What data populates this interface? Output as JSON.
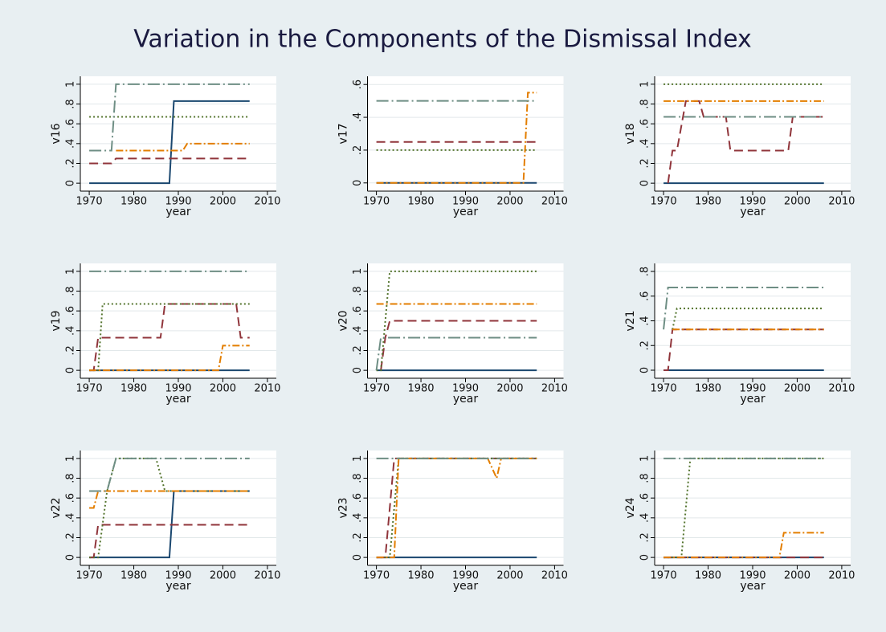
{
  "title": "Variation in the Components of the Dismissal Index",
  "chart_data": [
    {
      "type": "line",
      "ylabel": "v16",
      "xlabel": "year",
      "xlim": [
        1968,
        2012
      ],
      "ylim": [
        -0.08,
        1.08
      ],
      "xticks": [
        1970,
        1980,
        1990,
        2000,
        2010
      ],
      "yticks": [
        0,
        {
          "value": 0.2,
          "label": ".2"
        },
        {
          "value": 0.4,
          "label": ".4"
        },
        {
          "value": 0.6,
          "label": ".6"
        },
        {
          "value": 0.8,
          "label": ".8"
        },
        1
      ],
      "series": [
        {
          "color": "#1a476f",
          "style": "solid",
          "x": [
            1970,
            1988,
            1989,
            2006
          ],
          "values": [
            0,
            0,
            0.83,
            0.83
          ]
        },
        {
          "color": "#90353b",
          "style": "dash",
          "x": [
            1970,
            1975,
            1976,
            2006
          ],
          "values": [
            0.2,
            0.2,
            0.25,
            0.25
          ]
        },
        {
          "color": "#55752f",
          "style": "dot",
          "x": [
            1970,
            2006
          ],
          "values": [
            0.67,
            0.67
          ]
        },
        {
          "color": "#e37e00",
          "style": "dashdot",
          "x": [
            1976,
            1991,
            1992,
            2006
          ],
          "values": [
            0.33,
            0.33,
            0.4,
            0.4
          ]
        },
        {
          "color": "#6e8e84",
          "style": "longdashdot",
          "x": [
            1970,
            1975,
            1976,
            2006
          ],
          "values": [
            0.33,
            0.33,
            1,
            1
          ]
        }
      ]
    },
    {
      "type": "line",
      "ylabel": "v17",
      "xlabel": "year",
      "xlim": [
        1968,
        2012
      ],
      "ylim": [
        -0.05,
        0.65
      ],
      "xticks": [
        1970,
        1980,
        1990,
        2000,
        2010
      ],
      "yticks": [
        0,
        {
          "value": 0.2,
          "label": ".2"
        },
        {
          "value": 0.4,
          "label": ".4"
        },
        {
          "value": 0.6,
          "label": ".6"
        }
      ],
      "series": [
        {
          "color": "#1a476f",
          "style": "solid",
          "x": [
            1970,
            2006
          ],
          "values": [
            0,
            0
          ]
        },
        {
          "color": "#90353b",
          "style": "dash",
          "x": [
            1970,
            2006
          ],
          "values": [
            0.25,
            0.25
          ]
        },
        {
          "color": "#55752f",
          "style": "dot",
          "x": [
            1970,
            2006
          ],
          "values": [
            0.2,
            0.2
          ]
        },
        {
          "color": "#e37e00",
          "style": "dashdot",
          "x": [
            1970,
            2003,
            2004,
            2006
          ],
          "values": [
            0,
            0,
            0.55,
            0.55
          ]
        },
        {
          "color": "#6e8e84",
          "style": "longdashdot",
          "x": [
            1970,
            2006
          ],
          "values": [
            0.5,
            0.5
          ]
        }
      ]
    },
    {
      "type": "line",
      "ylabel": "v18",
      "xlabel": "year",
      "xlim": [
        1968,
        2012
      ],
      "ylim": [
        -0.08,
        1.08
      ],
      "xticks": [
        1970,
        1980,
        1990,
        2000,
        2010
      ],
      "yticks": [
        0,
        {
          "value": 0.2,
          "label": ".2"
        },
        {
          "value": 0.4,
          "label": ".4"
        },
        {
          "value": 0.6,
          "label": ".6"
        },
        {
          "value": 0.8,
          "label": ".8"
        },
        1
      ],
      "series": [
        {
          "color": "#1a476f",
          "style": "solid",
          "x": [
            1970,
            2006
          ],
          "values": [
            0,
            0
          ]
        },
        {
          "color": "#90353b",
          "style": "dash",
          "x": [
            1971,
            1972,
            1973,
            1975,
            1978,
            1979,
            1984,
            1985,
            1998,
            1999,
            2006
          ],
          "values": [
            0,
            0.33,
            0.33,
            0.83,
            0.83,
            0.67,
            0.67,
            0.33,
            0.33,
            0.67,
            0.67
          ]
        },
        {
          "color": "#55752f",
          "style": "dot",
          "x": [
            1970,
            2006
          ],
          "values": [
            1,
            1
          ]
        },
        {
          "color": "#e37e00",
          "style": "dashdot",
          "x": [
            1970,
            2006
          ],
          "values": [
            0.83,
            0.83
          ]
        },
        {
          "color": "#6e8e84",
          "style": "longdashdot",
          "x": [
            1970,
            2006
          ],
          "values": [
            0.67,
            0.67
          ]
        }
      ]
    },
    {
      "type": "line",
      "ylabel": "v19",
      "xlabel": "year",
      "xlim": [
        1968,
        2012
      ],
      "ylim": [
        -0.08,
        1.08
      ],
      "xticks": [
        1970,
        1980,
        1990,
        2000,
        2010
      ],
      "yticks": [
        0,
        {
          "value": 0.2,
          "label": ".2"
        },
        {
          "value": 0.4,
          "label": ".4"
        },
        {
          "value": 0.6,
          "label": ".6"
        },
        {
          "value": 0.8,
          "label": ".8"
        },
        1
      ],
      "series": [
        {
          "color": "#1a476f",
          "style": "solid",
          "x": [
            1970,
            2006
          ],
          "values": [
            0,
            0
          ]
        },
        {
          "color": "#90353b",
          "style": "dash",
          "x": [
            1970,
            1971,
            1972,
            1986,
            1987,
            2003,
            2004,
            2006
          ],
          "values": [
            0,
            0,
            0.33,
            0.33,
            0.67,
            0.67,
            0.33,
            0.33
          ]
        },
        {
          "color": "#55752f",
          "style": "dot",
          "x": [
            1970,
            1972,
            1973,
            2006
          ],
          "values": [
            0,
            0,
            0.67,
            0.67
          ]
        },
        {
          "color": "#e37e00",
          "style": "dashdot",
          "x": [
            1970,
            1999,
            2000,
            2006
          ],
          "values": [
            0,
            0,
            0.25,
            0.25
          ]
        },
        {
          "color": "#6e8e84",
          "style": "longdashdot",
          "x": [
            1970,
            2006
          ],
          "values": [
            1,
            1
          ]
        }
      ]
    },
    {
      "type": "line",
      "ylabel": "v20",
      "xlabel": "year",
      "xlim": [
        1968,
        2012
      ],
      "ylim": [
        -0.08,
        1.08
      ],
      "xticks": [
        1970,
        1980,
        1990,
        2000,
        2010
      ],
      "yticks": [
        0,
        {
          "value": 0.2,
          "label": ".2"
        },
        {
          "value": 0.4,
          "label": ".4"
        },
        {
          "value": 0.6,
          "label": ".6"
        },
        {
          "value": 0.8,
          "label": ".8"
        },
        1
      ],
      "series": [
        {
          "color": "#1a476f",
          "style": "solid",
          "x": [
            1970,
            2006
          ],
          "values": [
            0,
            0
          ]
        },
        {
          "color": "#90353b",
          "style": "dash",
          "x": [
            1971,
            1972,
            1973,
            2006
          ],
          "values": [
            0,
            0.33,
            0.5,
            0.5
          ]
        },
        {
          "color": "#55752f",
          "style": "dot",
          "x": [
            1970,
            1971,
            1973,
            2006
          ],
          "values": [
            0,
            0,
            1,
            1
          ]
        },
        {
          "color": "#e37e00",
          "style": "dashdot",
          "x": [
            1970,
            2006
          ],
          "values": [
            0.67,
            0.67
          ]
        },
        {
          "color": "#6e8e84",
          "style": "longdashdot",
          "x": [
            1970,
            1971,
            2006
          ],
          "values": [
            0,
            0.33,
            0.33
          ]
        }
      ]
    },
    {
      "type": "line",
      "ylabel": "v21",
      "xlabel": "year",
      "xlim": [
        1968,
        2012
      ],
      "ylim": [
        -0.065,
        0.865
      ],
      "xticks": [
        1970,
        1980,
        1990,
        2000,
        2010
      ],
      "yticks": [
        0,
        {
          "value": 0.2,
          "label": ".2"
        },
        {
          "value": 0.4,
          "label": ".4"
        },
        {
          "value": 0.6,
          "label": ".6"
        },
        {
          "value": 0.8,
          "label": ".8"
        }
      ],
      "series": [
        {
          "color": "#1a476f",
          "style": "solid",
          "x": [
            1970,
            2006
          ],
          "values": [
            0,
            0
          ]
        },
        {
          "color": "#90353b",
          "style": "dash",
          "x": [
            1970,
            1971,
            1972,
            2006
          ],
          "values": [
            0,
            0,
            0.33,
            0.33
          ]
        },
        {
          "color": "#55752f",
          "style": "dot",
          "x": [
            1972,
            1973,
            2006
          ],
          "values": [
            0.33,
            0.5,
            0.5
          ]
        },
        {
          "color": "#e37e00",
          "style": "dashdot",
          "x": [
            1972,
            2006
          ],
          "values": [
            0.33,
            0.33
          ]
        },
        {
          "color": "#6e8e84",
          "style": "longdashdot",
          "x": [
            1970,
            1971,
            2006
          ],
          "values": [
            0.33,
            0.67,
            0.67
          ]
        }
      ]
    },
    {
      "type": "line",
      "ylabel": "v22",
      "xlabel": "year",
      "xlim": [
        1968,
        2012
      ],
      "ylim": [
        -0.08,
        1.08
      ],
      "xticks": [
        1970,
        1980,
        1990,
        2000,
        2010
      ],
      "yticks": [
        0,
        {
          "value": 0.2,
          "label": ".2"
        },
        {
          "value": 0.4,
          "label": ".4"
        },
        {
          "value": 0.6,
          "label": ".6"
        },
        {
          "value": 0.8,
          "label": ".8"
        },
        1
      ],
      "series": [
        {
          "color": "#1a476f",
          "style": "solid",
          "x": [
            1970,
            1988,
            1989,
            2006
          ],
          "values": [
            0,
            0,
            0.67,
            0.67
          ]
        },
        {
          "color": "#90353b",
          "style": "dash",
          "x": [
            1970,
            1971,
            1972,
            2006
          ],
          "values": [
            0,
            0,
            0.33,
            0.33
          ]
        },
        {
          "color": "#55752f",
          "style": "dot",
          "x": [
            1970,
            1972,
            1974,
            1976,
            1985,
            1987,
            2006
          ],
          "values": [
            0,
            0,
            0.67,
            1,
            1,
            0.67,
            0.67
          ]
        },
        {
          "color": "#e37e00",
          "style": "dashdot",
          "x": [
            1970,
            1971,
            1972,
            2006
          ],
          "values": [
            0.5,
            0.5,
            0.67,
            0.67
          ]
        },
        {
          "color": "#6e8e84",
          "style": "longdashdot",
          "x": [
            1970,
            1974,
            1976,
            2006
          ],
          "values": [
            0.67,
            0.67,
            1,
            1
          ]
        }
      ]
    },
    {
      "type": "line",
      "ylabel": "v23",
      "xlabel": "year",
      "xlim": [
        1968,
        2012
      ],
      "ylim": [
        -0.08,
        1.08
      ],
      "xticks": [
        1970,
        1980,
        1990,
        2000,
        2010
      ],
      "yticks": [
        0,
        {
          "value": 0.2,
          "label": ".2"
        },
        {
          "value": 0.4,
          "label": ".4"
        },
        {
          "value": 0.6,
          "label": ".6"
        },
        {
          "value": 0.8,
          "label": ".8"
        },
        1
      ],
      "series": [
        {
          "color": "#1a476f",
          "style": "solid",
          "x": [
            1970,
            2006
          ],
          "values": [
            0,
            0
          ]
        },
        {
          "color": "#90353b",
          "style": "dash",
          "x": [
            1970,
            1972,
            1974,
            2006
          ],
          "values": [
            0,
            0,
            1,
            1
          ]
        },
        {
          "color": "#55752f",
          "style": "dot",
          "x": [
            1970,
            1973,
            1975,
            2006
          ],
          "values": [
            0,
            0,
            1,
            1
          ]
        },
        {
          "color": "#e37e00",
          "style": "dashdot",
          "x": [
            1970,
            1974,
            1975,
            1995,
            1997,
            1998,
            2006
          ],
          "values": [
            0,
            0,
            1,
            1,
            0.8,
            1,
            1
          ]
        },
        {
          "color": "#6e8e84",
          "style": "longdashdot",
          "x": [
            1970,
            2006
          ],
          "values": [
            1,
            1
          ]
        }
      ]
    },
    {
      "type": "line",
      "ylabel": "v24",
      "xlabel": "year",
      "xlim": [
        1968,
        2012
      ],
      "ylim": [
        -0.08,
        1.08
      ],
      "xticks": [
        1970,
        1980,
        1990,
        2000,
        2010
      ],
      "yticks": [
        0,
        {
          "value": 0.2,
          "label": ".2"
        },
        {
          "value": 0.4,
          "label": ".4"
        },
        {
          "value": 0.6,
          "label": ".6"
        },
        {
          "value": 0.8,
          "label": ".8"
        },
        1
      ],
      "series": [
        {
          "color": "#1a476f",
          "style": "solid",
          "x": [
            1970,
            2006
          ],
          "values": [
            0,
            0
          ]
        },
        {
          "color": "#90353b",
          "style": "dash",
          "x": [
            1970,
            2006
          ],
          "values": [
            0,
            0
          ]
        },
        {
          "color": "#55752f",
          "style": "dot",
          "x": [
            1970,
            1974,
            1976,
            2006
          ],
          "values": [
            0,
            0,
            1,
            1
          ]
        },
        {
          "color": "#e37e00",
          "style": "dashdot",
          "x": [
            1970,
            1996,
            1997,
            2006
          ],
          "values": [
            0,
            0,
            0.25,
            0.25
          ]
        },
        {
          "color": "#6e8e84",
          "style": "longdashdot",
          "x": [
            1970,
            2006
          ],
          "values": [
            1,
            1
          ]
        }
      ]
    }
  ]
}
